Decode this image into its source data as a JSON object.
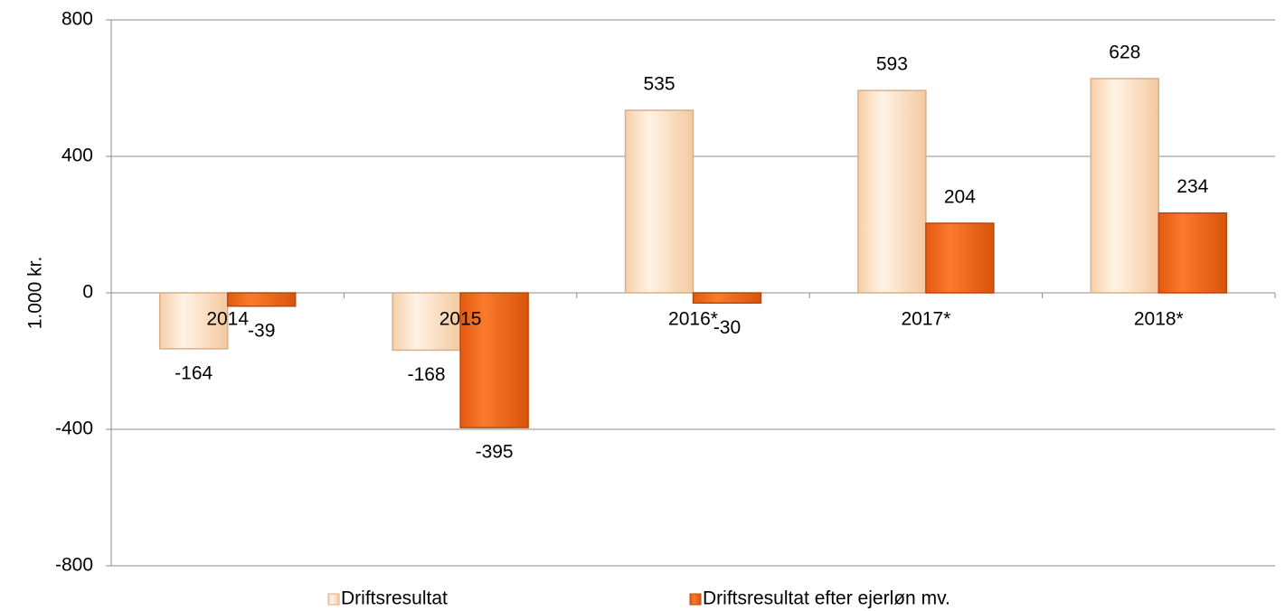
{
  "chart_data": {
    "type": "bar",
    "ylabel": "1.000 kr.",
    "categories": [
      "2014",
      "2015",
      "2016*",
      "2017*",
      "2018*"
    ],
    "series": [
      {
        "name": "Driftsresultat",
        "color": "#fde0c0",
        "values": [
          -164,
          -168,
          535,
          593,
          628
        ]
      },
      {
        "name": "Driftsresultat efter ejerløn mv.",
        "color": "#f26b1d",
        "values": [
          -39,
          -395,
          -30,
          204,
          234
        ]
      }
    ],
    "ylim": [
      -800,
      800
    ],
    "yticks": [
      -800,
      -400,
      0,
      400,
      800
    ],
    "grid": true,
    "legend": "bottom"
  }
}
